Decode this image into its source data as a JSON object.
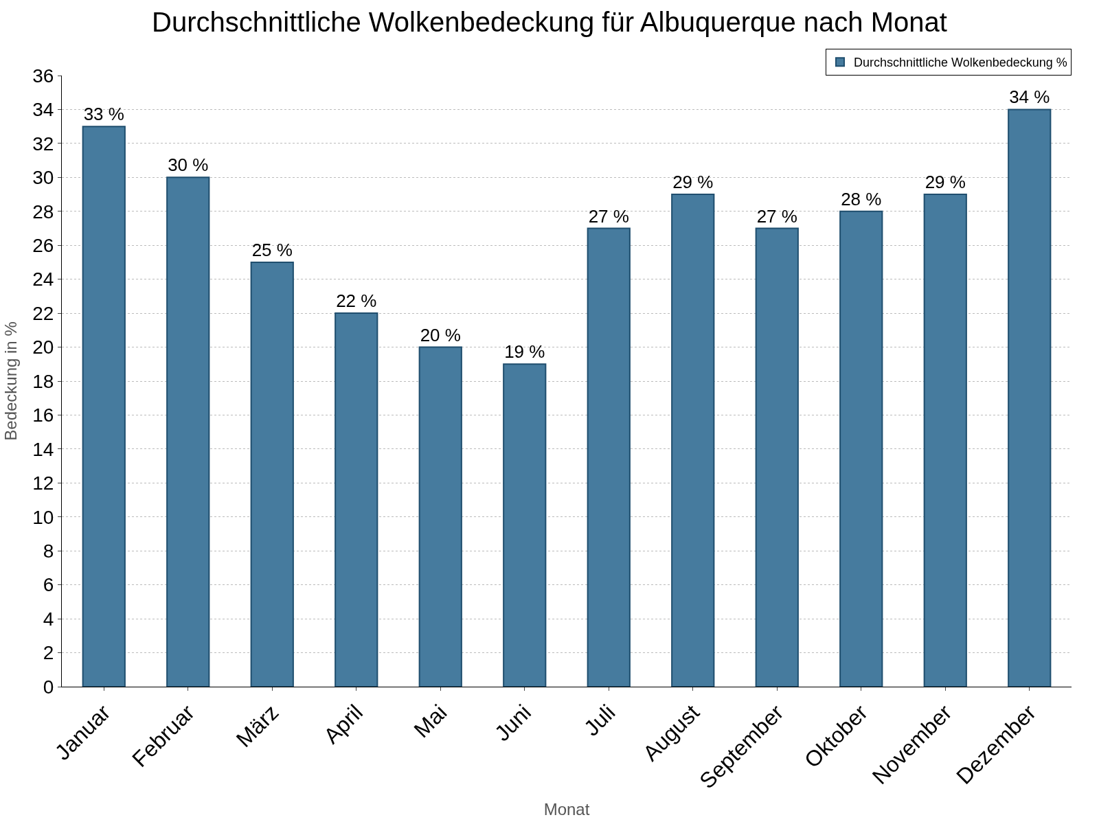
{
  "chart_data": {
    "type": "bar",
    "title": "Durchschnittliche Wolkenbedeckung für Albuquerque nach Monat",
    "xlabel": "Monat",
    "ylabel": "Bedeckung in %",
    "categories": [
      "Januar",
      "Februar",
      "März",
      "April",
      "Mai",
      "Juni",
      "Juli",
      "August",
      "September",
      "Oktober",
      "November",
      "Dezember"
    ],
    "series": [
      {
        "name": "Durchschnittliche Wolkenbedeckung %",
        "color": "#467b9e",
        "values": [
          33,
          30,
          25,
          22,
          20,
          19,
          27,
          29,
          27,
          28,
          29,
          34
        ],
        "value_labels": [
          "33 %",
          "30 %",
          "25 %",
          "22 %",
          "20 %",
          "19 %",
          "27 %",
          "29 %",
          "27 %",
          "28 %",
          "29 %",
          "34 %"
        ]
      }
    ],
    "ylim": [
      0,
      36
    ],
    "yticks": [
      0,
      2,
      4,
      6,
      8,
      10,
      12,
      14,
      16,
      18,
      20,
      22,
      24,
      26,
      28,
      30,
      32,
      34,
      36
    ],
    "grid": "y",
    "legend": "top right"
  }
}
